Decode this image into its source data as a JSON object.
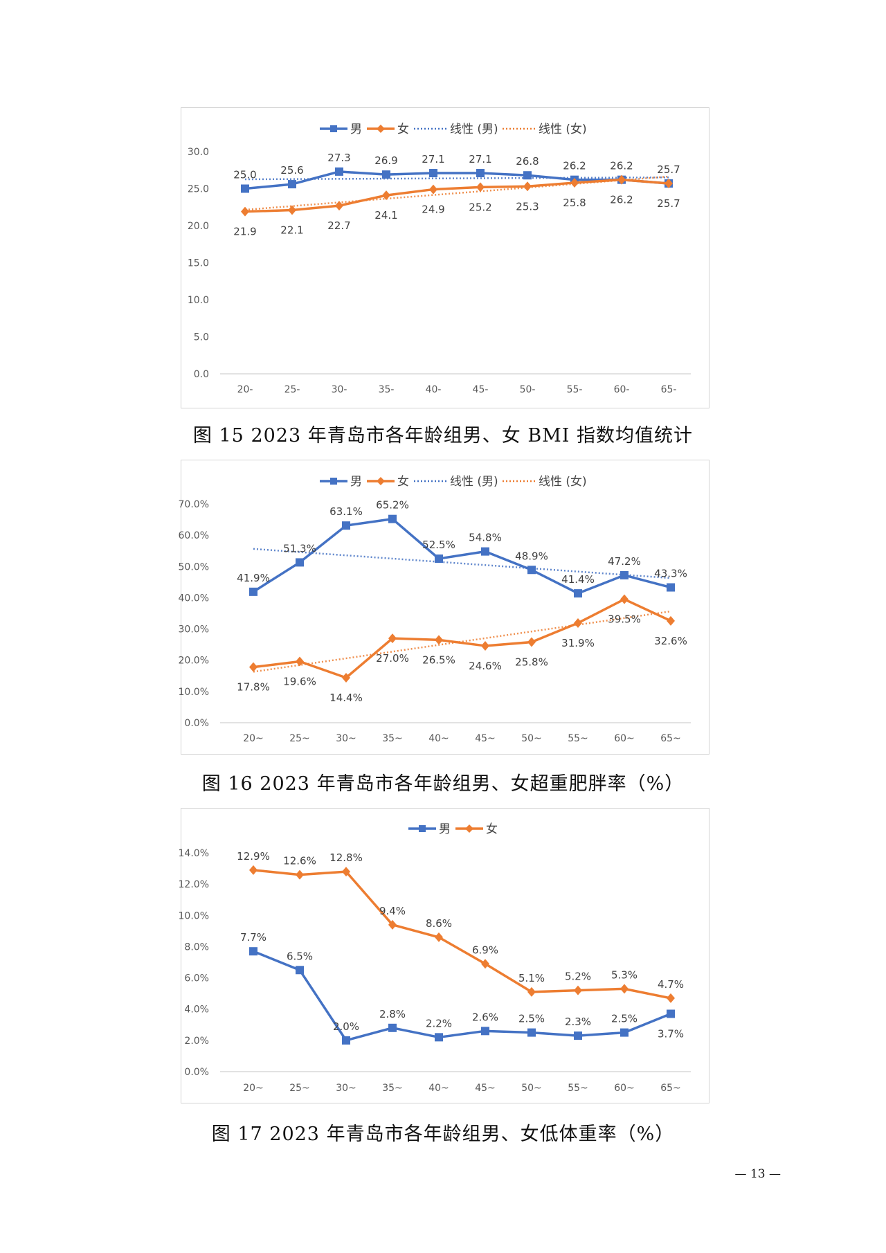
{
  "colors": {
    "male": "#4472C4",
    "female": "#ED7D31",
    "axis": "#d9d9d9",
    "tick_text": "#595959"
  },
  "figures": [
    {
      "caption": "图 15 2023 年青岛市各年龄组男、女 BMI 指数均值统计"
    },
    {
      "caption": "图 16 2023 年青岛市各年龄组男、女超重肥胖率（%）"
    },
    {
      "caption": "图 17 2023 年青岛市各年龄组男、女低体重率（%）"
    }
  ],
  "page_number": "— 13 —",
  "chart_data": [
    {
      "type": "line",
      "categories": [
        "20-",
        "25-",
        "30-",
        "35-",
        "40-",
        "45-",
        "50-",
        "55-",
        "60-",
        "65-"
      ],
      "ylim": [
        0,
        30
      ],
      "yticks": [
        "0.0",
        "5.0",
        "10.0",
        "15.0",
        "20.0",
        "25.0",
        "30.0"
      ],
      "legend": [
        "男",
        "女",
        "线性 (男)",
        "线性 (女)"
      ],
      "legend_position": "top",
      "trendlines": true,
      "series": [
        {
          "name": "男",
          "values": [
            25.0,
            25.6,
            27.3,
            26.9,
            27.1,
            27.1,
            26.8,
            26.2,
            26.2,
            25.7
          ],
          "labels": [
            "25.0",
            "25.6",
            "27.3",
            "26.9",
            "27.1",
            "27.1",
            "26.8",
            "26.2",
            "26.2",
            "25.7"
          ]
        },
        {
          "name": "女",
          "values": [
            21.9,
            22.1,
            22.7,
            24.1,
            24.9,
            25.2,
            25.3,
            25.8,
            26.2,
            25.7
          ],
          "labels": [
            "21.9",
            "22.1",
            "22.7",
            "24.1",
            "24.9",
            "25.2",
            "25.3",
            "25.8",
            "26.2",
            "25.7"
          ]
        }
      ]
    },
    {
      "type": "line",
      "categories": [
        "20~",
        "25~",
        "30~",
        "35~",
        "40~",
        "45~",
        "50~",
        "55~",
        "60~",
        "65~"
      ],
      "ylim": [
        0,
        70
      ],
      "yticks": [
        "0.0%",
        "10.0%",
        "20.0%",
        "30.0%",
        "40.0%",
        "50.0%",
        "60.0%",
        "70.0%"
      ],
      "legend": [
        "男",
        "女",
        "线性 (男)",
        "线性 (女)"
      ],
      "legend_position": "top",
      "trendlines": true,
      "series": [
        {
          "name": "男",
          "values": [
            41.9,
            51.3,
            63.1,
            65.2,
            52.5,
            54.8,
            48.9,
            41.4,
            47.2,
            43.3
          ],
          "labels": [
            "41.9%",
            "51.3%",
            "63.1%",
            "65.2%",
            "52.5%",
            "54.8%",
            "48.9%",
            "41.4%",
            "47.2%",
            "43.3%"
          ]
        },
        {
          "name": "女",
          "values": [
            17.8,
            19.6,
            14.4,
            27.0,
            26.5,
            24.6,
            25.8,
            31.9,
            39.5,
            32.6
          ],
          "labels": [
            "17.8%",
            "19.6%",
            "14.4%",
            "27.0%",
            "26.5%",
            "24.6%",
            "25.8%",
            "31.9%",
            "39.5%",
            "32.6%"
          ]
        }
      ]
    },
    {
      "type": "line",
      "categories": [
        "20~",
        "25~",
        "30~",
        "35~",
        "40~",
        "45~",
        "50~",
        "55~",
        "60~",
        "65~"
      ],
      "ylim": [
        0,
        14
      ],
      "yticks": [
        "0.0%",
        "2.0%",
        "4.0%",
        "6.0%",
        "8.0%",
        "10.0%",
        "12.0%",
        "14.0%"
      ],
      "legend": [
        "男",
        "女"
      ],
      "legend_position": "top",
      "trendlines": false,
      "series": [
        {
          "name": "男",
          "values": [
            7.7,
            6.5,
            2.0,
            2.8,
            2.2,
            2.6,
            2.5,
            2.3,
            2.5,
            3.7
          ],
          "labels": [
            "7.7%",
            "6.5%",
            "2.0%",
            "2.8%",
            "2.2%",
            "2.6%",
            "2.5%",
            "2.3%",
            "2.5%",
            "3.7%"
          ]
        },
        {
          "name": "女",
          "values": [
            12.9,
            12.6,
            12.8,
            9.4,
            8.6,
            6.9,
            5.1,
            5.2,
            5.3,
            4.7
          ],
          "labels": [
            "12.9%",
            "12.6%",
            "12.8%",
            "9.4%",
            "8.6%",
            "6.9%",
            "5.1%",
            "5.2%",
            "5.3%",
            "4.7%"
          ]
        }
      ]
    }
  ]
}
